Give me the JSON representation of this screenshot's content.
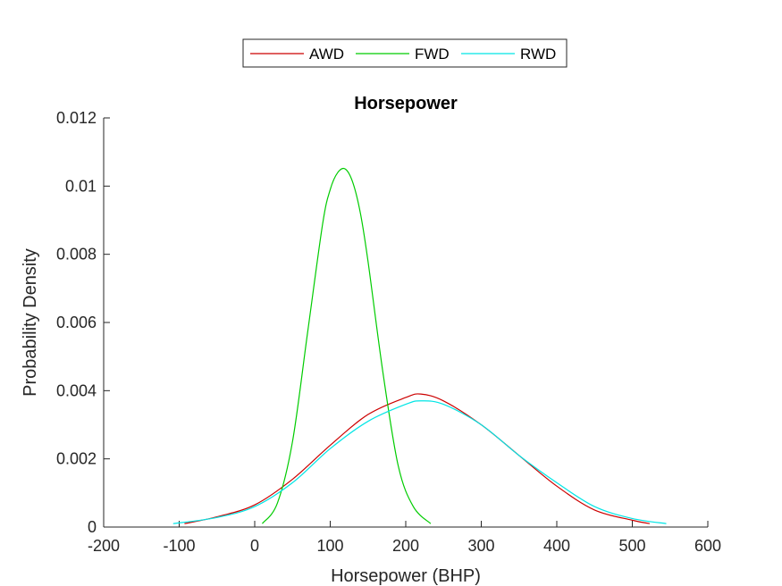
{
  "chart_data": {
    "type": "line",
    "title": "Horsepower",
    "xlabel": "Horsepower (BHP)",
    "ylabel": "Probability Density",
    "xlim": [
      -200,
      600
    ],
    "ylim": [
      0,
      0.012
    ],
    "xticks": [
      -200,
      -100,
      0,
      100,
      200,
      300,
      400,
      500,
      600
    ],
    "xtick_labels": [
      "-200",
      "-100",
      "0",
      "100",
      "200",
      "300",
      "400",
      "500",
      "600"
    ],
    "yticks": [
      0,
      0.002,
      0.004,
      0.006,
      0.008,
      0.01,
      0.012
    ],
    "ytick_labels": [
      "0",
      "0.002",
      "0.004",
      "0.006",
      "0.008",
      "0.01",
      "0.012"
    ],
    "grid": false,
    "legend": {
      "placement": "top-center",
      "orientation": "horizontal"
    },
    "series": [
      {
        "name": "AWD",
        "color": "#cc0000",
        "x": [
          -93,
          -50,
          0,
          50,
          100,
          150,
          200,
          220,
          250,
          300,
          350,
          400,
          450,
          500,
          523
        ],
        "y": [
          0.0001,
          0.0003,
          0.00065,
          0.0014,
          0.0024,
          0.0033,
          0.0038,
          0.0039,
          0.0037,
          0.003,
          0.0021,
          0.0012,
          0.0005,
          0.0002,
          0.0001
        ]
      },
      {
        "name": "FWD",
        "color": "#00cc00",
        "x": [
          10,
          30,
          50,
          70,
          90,
          100,
          110,
          120,
          130,
          140,
          150,
          170,
          190,
          210,
          233
        ],
        "y": [
          0.0001,
          0.0007,
          0.0025,
          0.0057,
          0.0089,
          0.0099,
          0.0104,
          0.0105,
          0.0101,
          0.0092,
          0.0078,
          0.0045,
          0.0018,
          0.0006,
          0.0001
        ]
      },
      {
        "name": "RWD",
        "color": "#00e5e5",
        "x": [
          -108,
          -50,
          0,
          50,
          100,
          150,
          200,
          220,
          250,
          300,
          350,
          400,
          450,
          500,
          545
        ],
        "y": [
          0.0001,
          0.00028,
          0.0006,
          0.0013,
          0.0023,
          0.0031,
          0.0036,
          0.0037,
          0.0036,
          0.003,
          0.0021,
          0.0013,
          0.0006,
          0.00025,
          0.0001
        ]
      }
    ]
  }
}
